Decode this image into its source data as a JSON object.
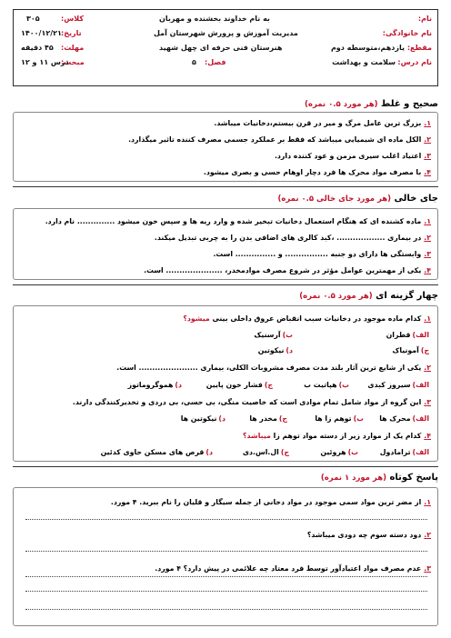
{
  "header": {
    "bismillah": "به نام خداوند بخشنده و مهربان",
    "office": "مدیریت آموزش و پرورش شهرستان آمل",
    "school": "هنرستان فنی حرفه ای چهل شهید",
    "name_label": "نام:",
    "family_label": "نام خانوادگی:",
    "grade_label": "مقطع:",
    "grade_value": "یازدهم،متوسطه دوم",
    "course_label": "نام درس:",
    "course_value": "سلامت و بهداشت",
    "class_label": "کلاس:",
    "class_value": "۳۰۵",
    "date_label": "تاریخ:",
    "date_value": "۱۴۰۰/۱۲/۲۱",
    "time_label": "مهلت:",
    "time_value": "۴۵ دقیقه",
    "topic_label": "مبحث:",
    "topic_value": "درس ۱۱ و ۱۲",
    "chapter_label": "فصل:",
    "chapter_value": "۵"
  },
  "sections": {
    "tf": {
      "title": "صحیح و غلط",
      "note": "(هر مورد ۰.۵ نمره)",
      "items": [
        {
          "n": "۱.",
          "text": "بزرگ ترین عامل مرگ و میر در قرن بیستم،دخانیات میباشد."
        },
        {
          "n": "۲.",
          "text": "الکل ماده ای شیمیایی میباشد که فقط بر عملکرد جسمی مصرف کننده تاثیر میگذارد."
        },
        {
          "n": "۳.",
          "text": "اعتیاد اغلب سیری مزمن و عود کننده دارد."
        },
        {
          "n": "۴.",
          "text": "با مصرف مواد محرک ها فرد دچار اوهام حسی و بصری میشود."
        }
      ]
    },
    "fill": {
      "title": "جای خالی",
      "note": "(هر مورد جای خالی ۰.۵ نمره)",
      "items": [
        {
          "n": "۱.",
          "text": "ماده کشنده ای که هنگام استعمال دخانیات تبخیر شده و وارد ریه ها و سپس خون میشود .............. نام دارد."
        },
        {
          "n": "۲.",
          "text": "در بیماری .................. ،کبد کالری های اضافی بدن را به چربی تبدیل میکند."
        },
        {
          "n": "۳.",
          "text": "وابستگی ها دارای دو جنبه ................ و ............... است."
        },
        {
          "n": "۴.",
          "text": "یکی از مهمترین عوامل مؤثر در شروع مصرف موادمخدر، ..................... است."
        }
      ]
    },
    "mc": {
      "title": "چهار گزینه ای",
      "note": "(هر مورد ۰.۵ نمره)",
      "q1": {
        "n": "۱.",
        "text": "کدام ماده موجود در دخانیات سبب انقباض عروق داخلی بینی",
        "red": "میشود؟",
        "a": "قطران",
        "b": "آرسنیک",
        "c": "آمونیاک",
        "d": "نیکوتین"
      },
      "q2": {
        "n": "۲.",
        "text": "یکی از شایع ترین آثار بلند مدت مصرف مشروبات الکلی، بیماری ...................... است.",
        "a": "سیروز کبدی",
        "b": "هپاتیت ب",
        "c": "فشار خون پایین",
        "d": "هموگروماتوز"
      },
      "q3": {
        "n": "۳.",
        "text": "این گروه از مواد شامل تمام موادی است که خاصیت منگی، بی حسی، بی دردی و تخدیرکنندگی دارند.",
        "a": "محرک ها",
        "b": "توهم زا ها",
        "c": "مخدر ها",
        "d": "نیکوتین ها"
      },
      "q4": {
        "n": "۴.",
        "text": "کدام یک از موارد زیر از دسته مواد توهم زا",
        "red": "میباشد؟",
        "a": "ترامادول",
        "b": "هروئین",
        "c": "ال.اس.دی",
        "d": "قرص های مسکن حاوی کدئین"
      },
      "labels": {
        "a": "الف)",
        "b": "ب)",
        "c": "ج)",
        "d": "د)"
      }
    },
    "short": {
      "title": "پاسخ کوتاه",
      "note": "(هر مورد ۱ نمره)",
      "items": [
        {
          "n": "۱.",
          "text": "از مضر ترین مواد سمی موجود در مواد دخانی از جمله سیگار و قلیان را نام ببرید. ۴ مورد."
        },
        {
          "n": "۲.",
          "text": "دود دسته سوم چه دودی میباشد؟"
        },
        {
          "n": "۳.",
          "text": "عدم مصرف مواد اعتیادآور توسط فرد معتاد چه علائمی در پیش دارد؟ ۴ مورد."
        }
      ]
    }
  }
}
